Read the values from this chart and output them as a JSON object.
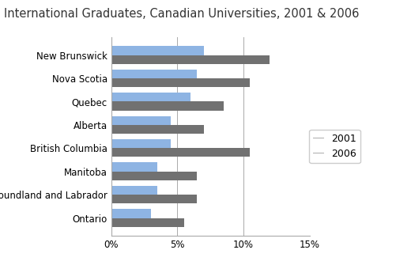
{
  "title": "International Graduates, Canadian Universities, 2001 & 2006",
  "provinces": [
    "New Brunswick",
    "Nova Scotia",
    "Quebec",
    "Alberta",
    "British Columbia",
    "Manitoba",
    "Newfoundland and Labrador",
    "Ontario"
  ],
  "values_2001": [
    7.0,
    6.5,
    6.0,
    4.5,
    4.5,
    3.5,
    3.5,
    3.0
  ],
  "values_2006": [
    12.0,
    10.5,
    8.5,
    7.0,
    10.5,
    6.5,
    6.5,
    5.5
  ],
  "color_2001": "#8eb4e3",
  "color_2006": "#717171",
  "legend_labels": [
    "2001",
    "2006"
  ],
  "xlim": [
    0,
    15
  ],
  "xticks": [
    0,
    5,
    10,
    15
  ],
  "xticklabels": [
    "0%",
    "5%",
    "10%",
    "15%"
  ],
  "bar_height": 0.38,
  "title_fontsize": 10.5,
  "tick_fontsize": 8.5,
  "legend_fontsize": 9
}
